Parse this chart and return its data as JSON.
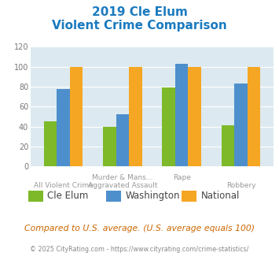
{
  "title_line1": "2019 Cle Elum",
  "title_line2": "Violent Crime Comparison",
  "series": {
    "Cle Elum": [
      45,
      40,
      79,
      41
    ],
    "Washington": [
      78,
      52,
      103,
      83
    ],
    "National": [
      100,
      100,
      100,
      100
    ]
  },
  "colors": {
    "Cle Elum": "#7db928",
    "Washington": "#4d8fcc",
    "National": "#f5a623"
  },
  "ylim": [
    0,
    120
  ],
  "yticks": [
    0,
    20,
    40,
    60,
    80,
    100,
    120
  ],
  "plot_bg": "#dce9f0",
  "title_color": "#1a7abf",
  "row1_labels": [
    "",
    "Murder & Mans...",
    "Rape",
    ""
  ],
  "row2_labels": [
    "All Violent Crime",
    "Aggravated Assault",
    "",
    "Robbery"
  ],
  "footnote1": "Compared to U.S. average. (U.S. average equals 100)",
  "footnote2": "© 2025 CityRating.com - https://www.cityrating.com/crime-statistics/",
  "footnote1_color": "#cc6600",
  "footnote2_color": "#888888"
}
